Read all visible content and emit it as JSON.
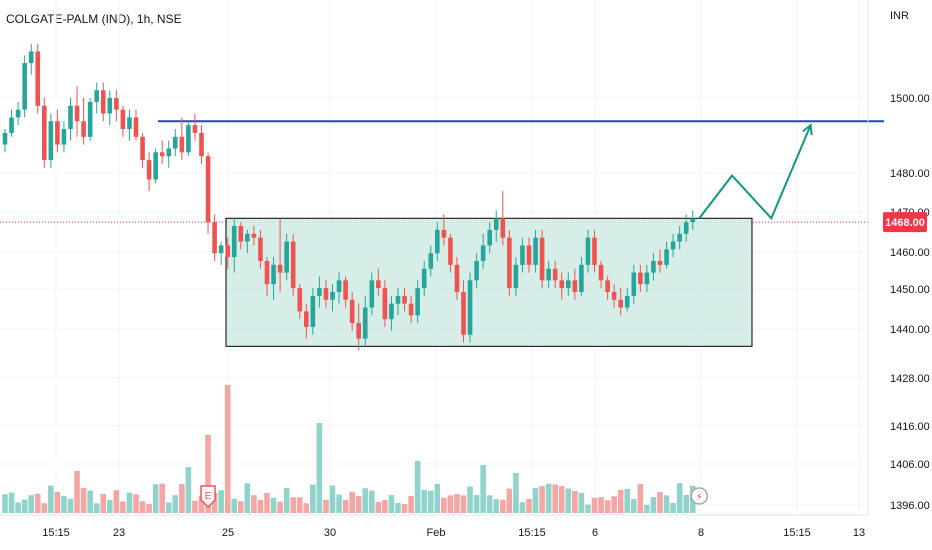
{
  "header": {
    "title": "COLGATE-PALM (IND), 1h, NSE",
    "currency": "INR"
  },
  "colors": {
    "up": "#26a69a",
    "down": "#ef5350",
    "up_volume": "#8fd3cb",
    "down_volume": "#f4a6a5",
    "resistance": "#1848cc",
    "range_fill": "#cfeae4",
    "range_border": "#000000",
    "projection": "#12968a",
    "current_price": "#f23645"
  },
  "chart_data": {
    "type": "candlestick",
    "y_axis": {
      "ticks": [
        "1500.00",
        "1480.00",
        "1470.00",
        "1460.00",
        "1450.00",
        "1440.00",
        "1428.00",
        "1416.00",
        "1406.00",
        "1396.00"
      ],
      "current_price": "1468.00"
    },
    "x_axis": {
      "ticks": [
        "15:15",
        "23",
        "25",
        "30",
        "Feb",
        "15:15",
        "6",
        "8",
        "15:15",
        "13"
      ]
    },
    "resistance_level": 1494,
    "range_box": {
      "low": 1436,
      "high": 1469
    },
    "projection_path": [
      {
        "bar": 106,
        "price": 1469
      },
      {
        "bar": 111,
        "price": 1480
      },
      {
        "bar": 117,
        "price": 1469
      },
      {
        "bar": 123,
        "price": 1493
      }
    ],
    "markers": [
      {
        "bar": 31,
        "label": "E",
        "type": "earnings"
      },
      {
        "bar": 106,
        "label": "⚡",
        "type": "event"
      }
    ]
  }
}
